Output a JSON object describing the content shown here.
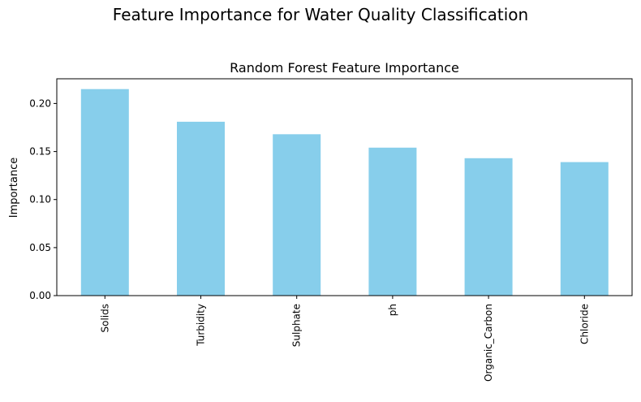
{
  "figure": {
    "suptitle": "Feature Importance for Water Quality Classification"
  },
  "chart_data": {
    "type": "bar",
    "title": "Random Forest Feature Importance",
    "xlabel": "",
    "ylabel": "Importance",
    "categories": [
      "Solids",
      "Turbidity",
      "Sulphate",
      "ph",
      "Organic_Carbon",
      "Chloride"
    ],
    "values": [
      0.215,
      0.181,
      0.168,
      0.154,
      0.143,
      0.139
    ],
    "ylim": [
      0,
      0.2257
    ],
    "yticks": [
      "0.00",
      "0.05",
      "0.10",
      "0.15",
      "0.20"
    ],
    "ytick_values": [
      0,
      0.05,
      0.1,
      0.15,
      0.2
    ],
    "bar_color": "#87ceeb",
    "grid": false,
    "legend": "none"
  }
}
